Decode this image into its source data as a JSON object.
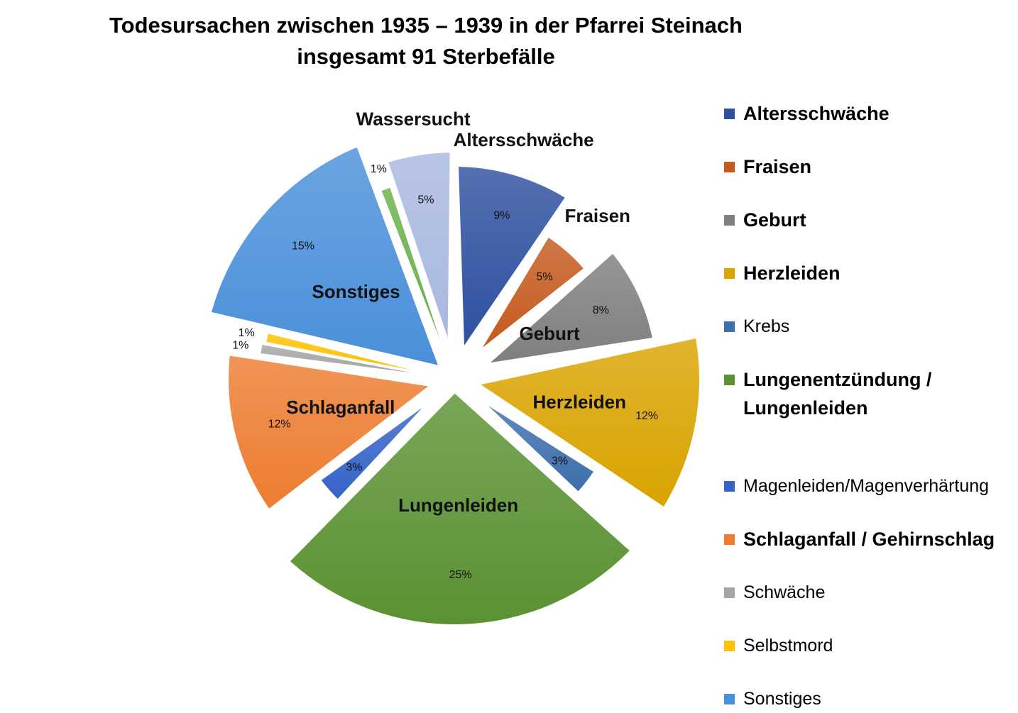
{
  "chart_data": {
    "type": "pie",
    "title_line1": "Todesursachen zwischen 1935 – 1939 in der Pfarrei Steinach",
    "title_line2": "insgesamt 91 Sterbefälle",
    "slices": [
      {
        "legend": "Altersschwäche",
        "outer_label": "Altersschwäche",
        "value": 9,
        "pct_label": "9%",
        "color": "#2E50A0",
        "legend_bold": true
      },
      {
        "legend": "Fraisen",
        "outer_label": "Fraisen",
        "value": 5,
        "pct_label": "5%",
        "color": "#C55A1E",
        "legend_bold": true
      },
      {
        "legend": "Geburt",
        "outer_label": "Geburt",
        "value": 8,
        "pct_label": "8%",
        "color": "#7F7F7F",
        "legend_bold": true
      },
      {
        "legend": "Herzleiden",
        "outer_label": "Herzleiden",
        "value": 12,
        "pct_label": "12%",
        "color": "#D9A300",
        "legend_bold": true
      },
      {
        "legend": "Krebs",
        "outer_label": "",
        "value": 3,
        "pct_label": "3%",
        "color": "#3D6FAA",
        "legend_bold": false
      },
      {
        "legend": "Lungenentzündung / Lungenleiden",
        "outer_label": "Lungenleiden",
        "value": 25,
        "pct_label": "25%",
        "color": "#5A9232",
        "legend_bold": true
      },
      {
        "legend": "Magenleiden/Magenverhärtung",
        "outer_label": "",
        "value": 3,
        "pct_label": "3%",
        "color": "#3563C8",
        "legend_bold": false
      },
      {
        "legend": "Schlaganfall / Gehirnschlag",
        "outer_label": "Schlaganfall",
        "value": 12,
        "pct_label": "12%",
        "color": "#ED7D31",
        "legend_bold": true
      },
      {
        "legend": "Schwäche",
        "outer_label": "",
        "value": 1,
        "pct_label": "1%",
        "color": "#A5A5A5",
        "legend_bold": false
      },
      {
        "legend": "Selbstmord",
        "outer_label": "",
        "value": 1,
        "pct_label": "1%",
        "color": "#FFC000",
        "legend_bold": false
      },
      {
        "legend": "Sonstiges",
        "outer_label": "Sonstiges",
        "value": 15,
        "pct_label": "15%",
        "color": "#4A90D9",
        "legend_bold": false
      },
      {
        "legend": "",
        "outer_label": "",
        "value": 1,
        "pct_label": "1%",
        "color": "#6AB04C",
        "legend_bold": false
      },
      {
        "legend": "",
        "outer_label": "Wassersucht",
        "value": 5,
        "pct_label": "5%",
        "color": "#A9B8E0",
        "legend_bold": false
      }
    ],
    "legend_placement": "right"
  }
}
